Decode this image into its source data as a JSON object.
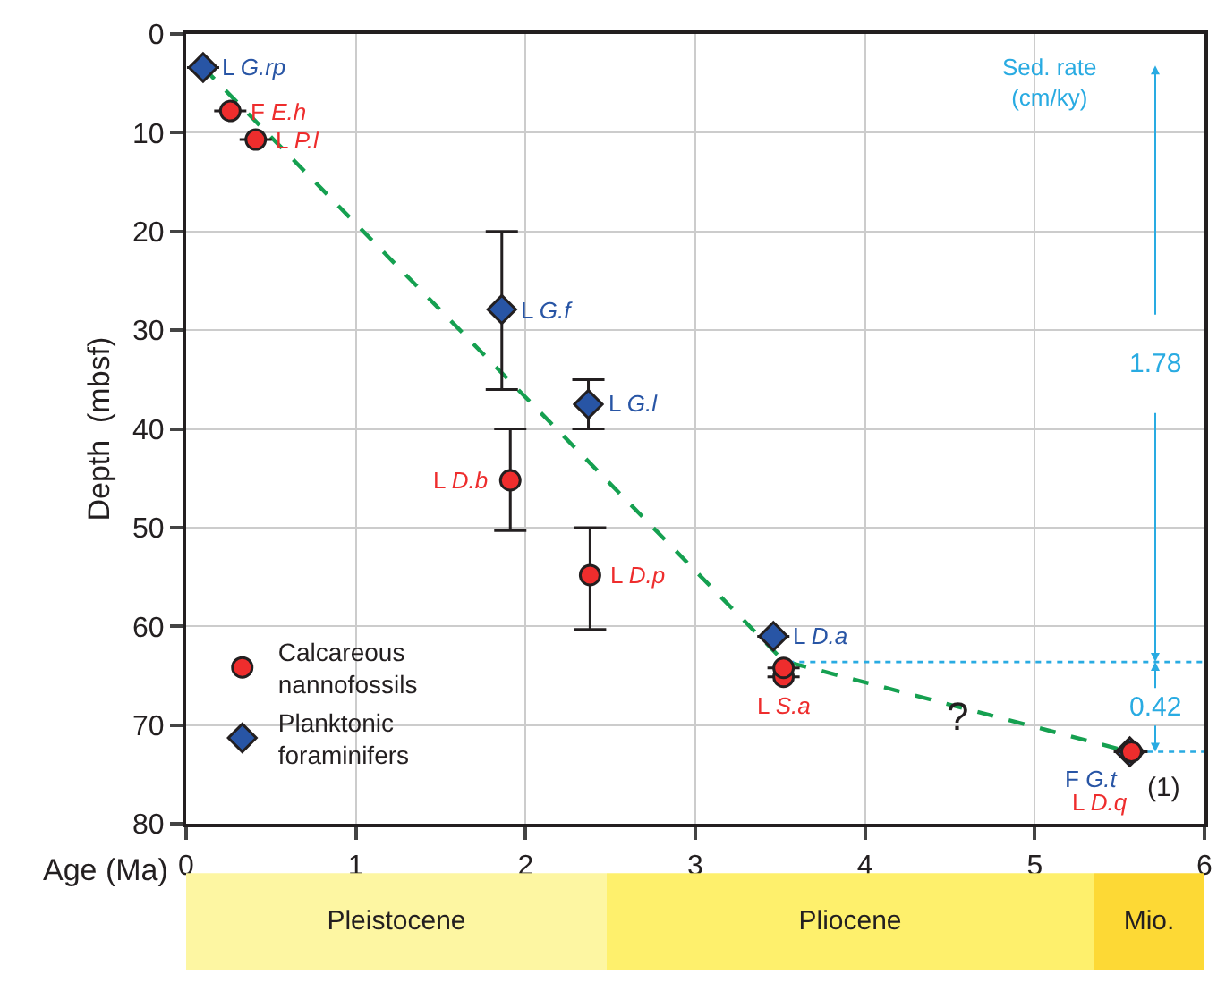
{
  "chart_data": [
    {
      "type": "scatter",
      "xlabel": "Age (Ma)",
      "ylabel": "Depth  (mbsf)",
      "xlim": [
        0,
        6
      ],
      "xticks": [
        0,
        1,
        2,
        3,
        4,
        5,
        6
      ],
      "ylim": [
        80,
        0
      ],
      "yticks": [
        0,
        10,
        20,
        30,
        40,
        50,
        60,
        70,
        80
      ],
      "grid": true,
      "legend": "bottom left",
      "series": [
        {
          "type": "line",
          "color": "#15a050",
          "line_style": "dashed",
          "marker": "none",
          "x": [
            0.1,
            3.52,
            5.56
          ],
          "values": [
            3.4,
            63.5,
            72.7
          ]
        },
        {
          "type": "line",
          "color": "#29abe2",
          "line_style": "dotted",
          "marker": "none",
          "x": [
            3.55,
            6
          ],
          "values": [
            63.6,
            63.6
          ]
        },
        {
          "type": "line",
          "color": "#29abe2",
          "line_style": "dotted",
          "marker": "none",
          "x": [
            5.6,
            6
          ],
          "values": [
            72.7,
            72.7
          ]
        },
        {
          "type": "scatter",
          "name": "Planktonic\nforaminifers",
          "color": "#2855a5",
          "marker": "diamond",
          "x": [
            0.1,
            1.86,
            2.37,
            3.46,
            5.56
          ],
          "values": [
            3.4,
            27.9,
            37.5,
            61,
            72.7
          ],
          "errors": [
            null,
            [
              20,
              36
            ],
            [
              35,
              40
            ],
            null,
            null
          ],
          "value_labels": [
            "L G.rp",
            "L G.f",
            "L G.l",
            "L D.a",
            "F G.t"
          ]
        },
        {
          "type": "scatter",
          "name": "Calcareous\nnannofossils",
          "color": "#ee2d2d",
          "marker": "circle",
          "x": [
            0.26,
            0.41,
            1.91,
            2.38,
            3.52,
            3.52,
            5.57
          ],
          "values": [
            7.8,
            10.7,
            45.2,
            54.8,
            65.1,
            64.2,
            72.7
          ],
          "errors": [
            null,
            null,
            [
              40,
              50.3
            ],
            [
              50,
              60.3
            ],
            null,
            null,
            null
          ],
          "value_labels": [
            "F E.h",
            "L P.l",
            "L D.b",
            "L D.p",
            "L S.a",
            null,
            "L D.q"
          ]
        }
      ],
      "annotations": [
        "Sed. rate\n(cm/ky)",
        "1.78",
        "0.42",
        "?",
        "(1)"
      ]
    },
    {
      "type": "bar",
      "orientation": "horizontal",
      "stacked": true,
      "categories": [
        null
      ],
      "xlim": [
        0,
        6
      ],
      "tick_labels": false,
      "series": [
        {
          "name": "Pleistocene",
          "color": "#fdf6a2",
          "values": [
            2.48
          ]
        },
        {
          "name": "Pliocene",
          "color": "#fef06c",
          "values": [
            2.87
          ]
        },
        {
          "name": "Mio.",
          "color": "#fdd935",
          "values": [
            0.65
          ]
        }
      ]
    }
  ]
}
